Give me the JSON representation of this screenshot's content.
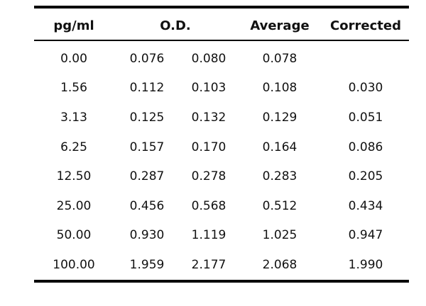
{
  "headers": [
    "pg/ml",
    "O.D.",
    "Average",
    "Corrected"
  ],
  "rows": [
    {
      "conc": "0.00",
      "od1": "0.076",
      "od2": "0.080",
      "avg": "0.078",
      "corr": ""
    },
    {
      "conc": "1.56",
      "od1": "0.112",
      "od2": "0.103",
      "avg": "0.108",
      "corr": "0.030"
    },
    {
      "conc": "3.13",
      "od1": "0.125",
      "od2": "0.132",
      "avg": "0.129",
      "corr": "0.051"
    },
    {
      "conc": "6.25",
      "od1": "0.157",
      "od2": "0.170",
      "avg": "0.164",
      "corr": "0.086"
    },
    {
      "conc": "12.50",
      "od1": "0.287",
      "od2": "0.278",
      "avg": "0.283",
      "corr": "0.205"
    },
    {
      "conc": "25.00",
      "od1": "0.456",
      "od2": "0.568",
      "avg": "0.512",
      "corr": "0.434"
    },
    {
      "conc": "50.00",
      "od1": "0.930",
      "od2": "1.119",
      "avg": "1.025",
      "corr": "0.947"
    },
    {
      "conc": "100.00",
      "od1": "1.959",
      "od2": "2.177",
      "avg": "2.068",
      "corr": "1.990"
    }
  ]
}
